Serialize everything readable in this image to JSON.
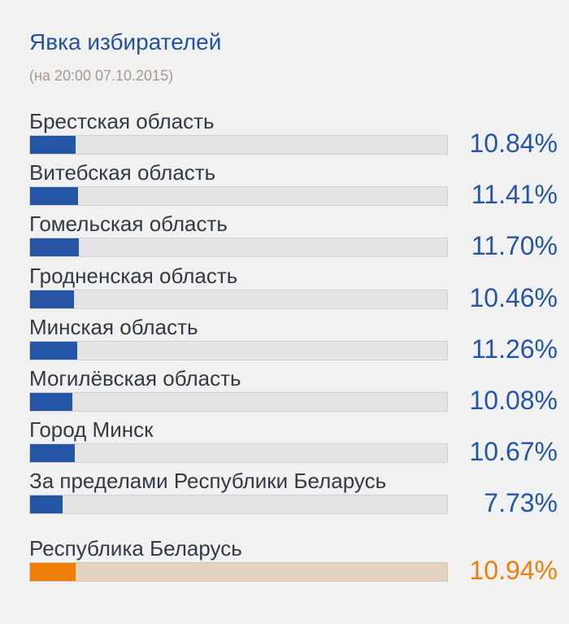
{
  "header": {
    "title": "Явка избирателей",
    "subtitle": "(на 20:00 07.10.2015)"
  },
  "colors": {
    "accent": "#2556a5",
    "total": "#f07f0a",
    "track": "#e4e4e4",
    "total_track": "#e4d3c2"
  },
  "rows": [
    {
      "label": "Брестская область",
      "pct": "10.84%",
      "value": 10.84
    },
    {
      "label": "Витебская область",
      "pct": "11.41%",
      "value": 11.41
    },
    {
      "label": "Гомельская область",
      "pct": "11.70%",
      "value": 11.7
    },
    {
      "label": "Гродненская область",
      "pct": "10.46%",
      "value": 10.46
    },
    {
      "label": "Минская область",
      "pct": "11.26%",
      "value": 11.26
    },
    {
      "label": "Могилёвская область",
      "pct": "10.08%",
      "value": 10.08
    },
    {
      "label": "Город Минск",
      "pct": "10.67%",
      "value": 10.67
    },
    {
      "label": "За пределами Республики Беларусь",
      "pct": "7.73%",
      "value": 7.73
    }
  ],
  "total": {
    "label": "Республика Беларусь",
    "pct": "10.94%",
    "value": 10.94
  },
  "chart_data": {
    "type": "bar",
    "orientation": "horizontal",
    "title": "Явка избирателей",
    "subtitle": "(на 20:00 07.10.2015)",
    "categories": [
      "Брестская область",
      "Витебская область",
      "Гомельская область",
      "Гродненская область",
      "Минская область",
      "Могилёвская область",
      "Город Минск",
      "За пределами Республики Беларусь",
      "Республика Беларусь"
    ],
    "values": [
      10.84,
      11.41,
      11.7,
      10.46,
      11.26,
      10.08,
      10.67,
      7.73,
      10.94
    ],
    "xlabel": "",
    "ylabel": "",
    "xlim": [
      0,
      100
    ],
    "unit": "%"
  }
}
